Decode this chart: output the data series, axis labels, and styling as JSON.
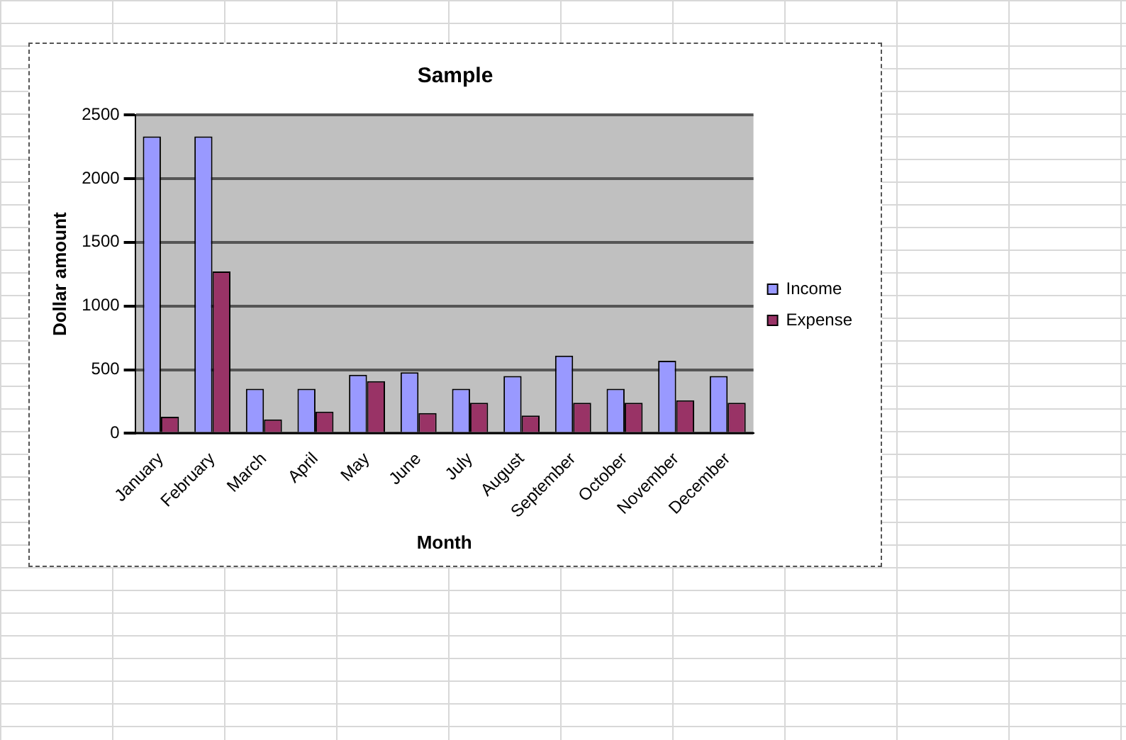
{
  "chart_data": {
    "type": "bar",
    "title": "Sample",
    "xlabel": "Month",
    "ylabel": "Dollar amount",
    "categories": [
      "January",
      "February",
      "March",
      "April",
      "May",
      "June",
      "July",
      "August",
      "September",
      "October",
      "November",
      "December"
    ],
    "series": [
      {
        "name": "Income",
        "color": "#9999ff",
        "values": [
          2330,
          2330,
          350,
          350,
          460,
          480,
          350,
          450,
          610,
          350,
          570,
          450
        ]
      },
      {
        "name": "Expense",
        "color": "#993366",
        "values": [
          130,
          1270,
          110,
          170,
          410,
          160,
          240,
          140,
          240,
          240,
          260,
          240
        ]
      }
    ],
    "ylim": [
      0,
      2500
    ],
    "yticks": [
      0,
      500,
      1000,
      1500,
      2000,
      2500
    ],
    "grid": "y",
    "legend": "right"
  }
}
